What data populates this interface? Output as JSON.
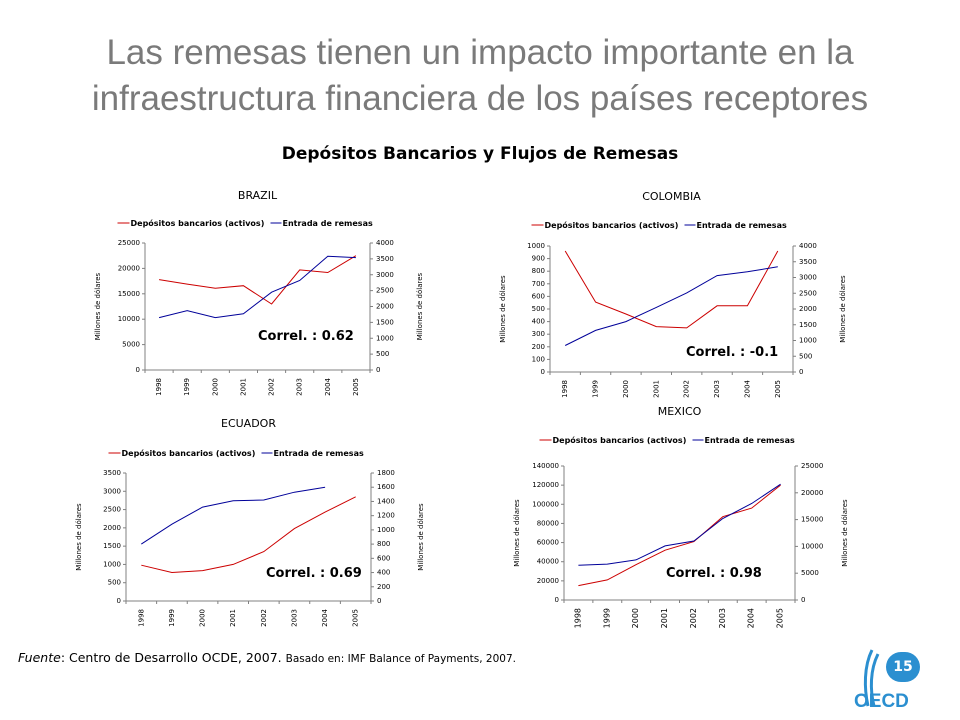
{
  "title": "Las remesas tienen un impacto importante en la infraestructura financiera de los países receptores",
  "subtitle": "Depósitos Bancarios y Flujos de Remesas",
  "footer": {
    "source_label": "Fuente",
    "source_text": ": Centro de Desarrollo OCDE, 2007.",
    "based_on": "Basado en:  IMF Balance of Payments, 2007."
  },
  "page_number": "15",
  "logo_text": "OECD",
  "colors": {
    "deposits": "#cc0000",
    "remittances": "#000099",
    "logo_blue": "#2b8fd0"
  },
  "chart_data": [
    {
      "type": "line",
      "title": "BRAZIL",
      "x": [
        "1998",
        "1999",
        "2000",
        "2001",
        "2002",
        "2003",
        "2004",
        "2005"
      ],
      "y_left": {
        "ticks": [
          0,
          5000,
          10000,
          15000,
          20000,
          25000
        ],
        "range": [
          0,
          25000
        ],
        "label": "Millones de dólares"
      },
      "y_right": {
        "ticks": [
          0,
          500,
          1000,
          1500,
          2000,
          2500,
          3000,
          3500,
          4000
        ],
        "range": [
          0,
          4000
        ],
        "label": "Millones de dólares"
      },
      "series": [
        {
          "name": "Depósitos bancarios (activos)",
          "axis": "left",
          "values": [
            17800,
            16900,
            16100,
            16600,
            13000,
            19700,
            19200,
            22500
          ]
        },
        {
          "name": "Entrada de remesas",
          "axis": "right",
          "values": [
            1650,
            1870,
            1650,
            1770,
            2450,
            2820,
            3580,
            3540
          ]
        }
      ],
      "annotation": "Correl. : 0.62",
      "legend": "top"
    },
    {
      "type": "line",
      "title": "COLOMBIA",
      "x": [
        "1998",
        "1999",
        "2000",
        "2001",
        "2002",
        "2003",
        "2004",
        "2005"
      ],
      "y_left": {
        "ticks": [
          0,
          100,
          200,
          300,
          400,
          500,
          600,
          700,
          800,
          900,
          1000
        ],
        "range": [
          0,
          1000
        ],
        "label": "Millones de dólares"
      },
      "y_right": {
        "ticks": [
          0,
          500,
          1000,
          1500,
          2000,
          2500,
          3000,
          3500,
          4000
        ],
        "range": [
          0,
          4000
        ],
        "label": "Millones de dólares"
      },
      "series": [
        {
          "name": "Depósitos bancarios (activos)",
          "axis": "left",
          "values": [
            960,
            555,
            460,
            360,
            350,
            525,
            525,
            960
          ]
        },
        {
          "name": "Entrada de remesas",
          "axis": "right",
          "values": [
            840,
            1320,
            1600,
            2050,
            2510,
            3060,
            3180,
            3340
          ]
        }
      ],
      "annotation": "Correl. : -0.1",
      "legend": "top"
    },
    {
      "type": "line",
      "title": "ECUADOR",
      "x": [
        "1998",
        "1999",
        "2000",
        "2001",
        "2002",
        "2003",
        "2004",
        "2005"
      ],
      "y_left": {
        "ticks": [
          0,
          500,
          1000,
          1500,
          2000,
          2500,
          3000,
          3500
        ],
        "range": [
          0,
          3500
        ],
        "label": "Millones de dólares"
      },
      "y_right": {
        "ticks": [
          0,
          200,
          400,
          600,
          800,
          1000,
          1200,
          1400,
          1600,
          1800
        ],
        "range": [
          0,
          1800
        ],
        "label": "Millones de dólares"
      },
      "series": [
        {
          "name": "Depósitos bancarios (activos)",
          "axis": "left",
          "values": [
            980,
            780,
            830,
            1000,
            1350,
            1980,
            2430,
            2850
          ]
        },
        {
          "name": "Entrada de remesas",
          "axis": "right",
          "values": [
            800,
            1080,
            1320,
            1410,
            1420,
            1530,
            1600,
            null
          ]
        }
      ],
      "annotation": "Correl. : 0.69",
      "legend": "top"
    },
    {
      "type": "line",
      "title": "MEXICO",
      "x": [
        "1998",
        "1999",
        "2000",
        "2001",
        "2002",
        "2003",
        "2004",
        "2005"
      ],
      "y_left": {
        "ticks": [
          0,
          20000,
          40000,
          60000,
          80000,
          100000,
          120000,
          140000
        ],
        "range": [
          0,
          140000
        ],
        "label": "Millones de dólares"
      },
      "y_right": {
        "ticks": [
          0,
          5000,
          10000,
          15000,
          20000,
          25000
        ],
        "range": [
          0,
          25000
        ],
        "label": "Millones de dólares"
      },
      "series": [
        {
          "name": "Depósitos bancarios (activos)",
          "axis": "left",
          "values": [
            15000,
            21000,
            37000,
            52000,
            61000,
            87000,
            96000,
            120000
          ]
        },
        {
          "name": "Entrada de remesas",
          "axis": "right",
          "values": [
            6500,
            6700,
            7500,
            10100,
            11000,
            15200,
            18000,
            21600
          ]
        }
      ],
      "annotation": "Correl. : 0.98",
      "legend": "top"
    }
  ]
}
